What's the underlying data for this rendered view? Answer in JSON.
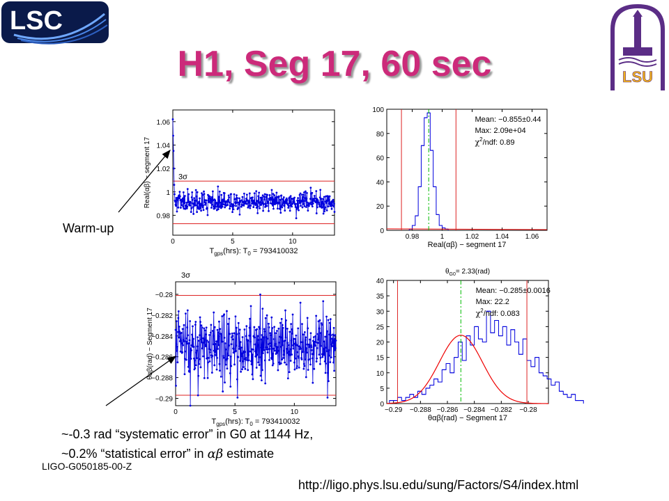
{
  "title": "H1, Seg 17, 60 sec",
  "logos": {
    "lsc": "LSC",
    "lsu": "LSU"
  },
  "notes": {
    "warmup": "Warm-up",
    "line1": "~-0.3 rad “systematic error” in G0 at 1144 Hz,",
    "line2_pre": "~0.2% “statistical error” in ",
    "line2_sym": "αβ",
    "line2_post": " estimate",
    "doc_id": "LIGO-G050185-00-Z",
    "url": "http://ligo.phys.lsu.edu/sung/Factors/S4/index.html"
  },
  "colors": {
    "data": "#0000dd",
    "limit": "#dd2222",
    "fit": "#ee0000",
    "mean": "#00bb00",
    "title": "#cc2a7a"
  },
  "chart_data": [
    {
      "type": "scatter",
      "id": "ts_real",
      "ylabel": "Real(αβ) − segment 17",
      "xlabel": "T(hrs): T = 793410032",
      "xlabel_parts": {
        "a": "T",
        "a_sub": "gps",
        "b": "(hrs): T",
        "b_sub": "0",
        "c": "= 793410032"
      },
      "xlim": [
        0,
        13.5
      ],
      "ylim": [
        0.963,
        1.07
      ],
      "xticks": [
        "0",
        "5",
        "10"
      ],
      "yticks": [
        "0.98",
        "1",
        "1.02",
        "1.04",
        "1.06"
      ],
      "ytick_values": [
        0.98,
        1,
        1.02,
        1.04,
        1.06
      ],
      "xtick_values": [
        0,
        5,
        10
      ],
      "limit_lines": [
        0.9728,
        1.0092
      ],
      "limit_label": "3σ",
      "mean": 0.991,
      "noise": 0.0045,
      "warmup_values": [
        1.062,
        1.048,
        1.035,
        1.02,
        1.006,
        0.998
      ],
      "n_points": 470
    },
    {
      "type": "bar",
      "id": "hist_real",
      "xlabel": "Real(αβ) − segment 17",
      "xlim": [
        0.963,
        1.07
      ],
      "ylim": [
        0,
        100
      ],
      "xticks": [
        "0.98",
        "1",
        "1.02",
        "1.04",
        "1.06"
      ],
      "xtick_values": [
        0.98,
        1,
        1.02,
        1.04,
        1.06
      ],
      "yticks": [
        "0",
        "20",
        "40",
        "60",
        "80",
        "100"
      ],
      "ytick_values": [
        0,
        20,
        40,
        60,
        80,
        100
      ],
      "bin_centers": [
        0.979,
        0.981,
        0.983,
        0.985,
        0.987,
        0.989,
        0.991,
        0.993,
        0.995,
        0.997,
        0.999,
        1.001,
        1.003
      ],
      "values": [
        1,
        4,
        12,
        36,
        70,
        93,
        97,
        66,
        36,
        13,
        4,
        2,
        1
      ],
      "limit_lines": [
        0.9728,
        1.0092
      ],
      "mean_line": 0.991,
      "stats": {
        "mean": "Mean: −0.855±0.44",
        "max": "Max: 2.09e+04",
        "chi_pre": "χ",
        "chi_sup": "2",
        "chi_post": "/ndf: 0.89"
      }
    },
    {
      "type": "scatter",
      "id": "ts_theta",
      "ylabel": "θαβ(rad) − Segment 17",
      "xlabel": "T(hrs): T = 793410032",
      "xlabel_parts": {
        "a": "T",
        "a_sub": "gps",
        "b": "(hrs): T",
        "b_sub": "0",
        "c": "= 793410032"
      },
      "xlim": [
        0,
        13.5
      ],
      "ylim": [
        -0.2907,
        -0.2788
      ],
      "xticks": [
        "0",
        "5",
        "10"
      ],
      "xtick_values": [
        0,
        5,
        10
      ],
      "yticks": [
        "−0.28",
        "−0.282",
        "−0.284",
        "−0.286",
        "−0.288",
        "−0.29"
      ],
      "ytick_values": [
        -0.28,
        -0.282,
        -0.284,
        -0.286,
        -0.288,
        -0.29
      ],
      "limit_lines": [
        -0.2801,
        -0.2897
      ],
      "limit_label": "3σ",
      "mean": -0.285,
      "noise": 0.0017,
      "n_points": 480
    },
    {
      "type": "bar",
      "id": "hist_theta",
      "title": "θG0= 2.33(rad)",
      "title_parts": {
        "a": "θ",
        "a_sub": "G0",
        "b": "= 2.33(rad)"
      },
      "xlabel": "θαβ(rad) − Segment 17",
      "xlim": [
        -0.2905,
        -0.2785
      ],
      "ylim": [
        0,
        40
      ],
      "xticks": [
        "−0.29",
        "−0.288",
        "−0.286",
        "−0.284",
        "−0.282",
        "−0.28"
      ],
      "xtick_values": [
        -0.29,
        -0.288,
        -0.286,
        -0.284,
        -0.282,
        -0.28
      ],
      "yticks": [
        "0",
        "5",
        "10",
        "15",
        "20",
        "25",
        "30",
        "35",
        "40"
      ],
      "ytick_values": [
        0,
        5,
        10,
        15,
        20,
        25,
        30,
        35,
        40
      ],
      "bin_start": -0.2903,
      "bin_width": 0.0003,
      "values": [
        1,
        1,
        2,
        1,
        2,
        3,
        2,
        4,
        3,
        5,
        6,
        8,
        7,
        11,
        13,
        10,
        15,
        20,
        14,
        22,
        19,
        25,
        21,
        20,
        30,
        23,
        27,
        22,
        25,
        19,
        24,
        20,
        16,
        21,
        14,
        12,
        15,
        10,
        9,
        8,
        6,
        7,
        4,
        3,
        2,
        3,
        1,
        1
      ],
      "fit": {
        "amplitude": 22.2,
        "mean": -0.285,
        "sigma": 0.0016
      },
      "limit_lines": [
        -0.2897,
        -0.2801
      ],
      "mean_line": -0.285,
      "stats": {
        "mean": "Mean: −0.285±0.0016",
        "max": "Max: 22.2",
        "chi_pre": "χ",
        "chi_sup": "2",
        "chi_post": "/ndf: 0.083"
      }
    }
  ]
}
